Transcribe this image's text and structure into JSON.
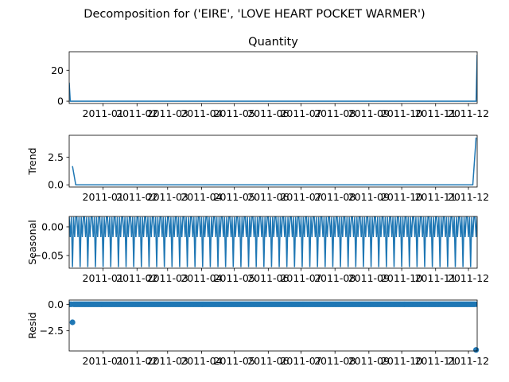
{
  "title": "Decomposition for ('EIRE', 'LOVE HEART POCKET WARMER')",
  "colors": {
    "series": "#1f77b4",
    "axis": "#000000"
  },
  "chart_data": [
    {
      "type": "line",
      "panel": "observed",
      "title": "Quantity",
      "ylabel": "",
      "x_range": [
        "2010-12-01",
        "2011-12-09"
      ],
      "ylim": [
        -1.5,
        32
      ],
      "yticks": [
        0,
        20
      ],
      "ytick_labels": [
        "0",
        "20"
      ],
      "xticks": [
        "2011-01-01",
        "2011-02-01",
        "2011-03-01",
        "2011-04-01",
        "2011-05-01",
        "2011-06-01",
        "2011-07-01",
        "2011-08-01",
        "2011-09-01",
        "2011-10-01",
        "2011-11-01",
        "2011-12-01"
      ],
      "xtick_labels": [
        "2011-01",
        "2011-02",
        "2011-03",
        "2011-04",
        "2011-05",
        "2011-06",
        "2011-07",
        "2011-08",
        "2011-09",
        "2011-10",
        "2011-11",
        "2011-12"
      ],
      "series": [
        {
          "x": [
            "2010-12-01",
            "2010-12-02",
            "2011-12-08",
            "2011-12-09"
          ],
          "y": [
            12,
            0,
            0,
            30
          ]
        }
      ]
    },
    {
      "type": "line",
      "panel": "trend",
      "ylabel": "Trend",
      "x_range": [
        "2010-12-01",
        "2011-12-09"
      ],
      "ylim": [
        -0.2,
        4.5
      ],
      "yticks": [
        0,
        2.5
      ],
      "ytick_labels": [
        "0.0",
        "2.5"
      ],
      "xticks": [
        "2011-01-01",
        "2011-02-01",
        "2011-03-01",
        "2011-04-01",
        "2011-05-01",
        "2011-06-01",
        "2011-07-01",
        "2011-08-01",
        "2011-09-01",
        "2011-10-01",
        "2011-11-01",
        "2011-12-01"
      ],
      "xtick_labels": [
        "2011-01",
        "2011-02",
        "2011-03",
        "2011-04",
        "2011-05",
        "2011-06",
        "2011-07",
        "2011-08",
        "2011-09",
        "2011-10",
        "2011-11",
        "2011-12"
      ],
      "series": [
        {
          "x": [
            "2010-12-04",
            "2010-12-07",
            "2011-12-05",
            "2011-12-08"
          ],
          "y": [
            1.7,
            0,
            0,
            4.3
          ]
        }
      ]
    },
    {
      "type": "line",
      "panel": "seasonal",
      "ylabel": "Seasonal",
      "x_range": [
        "2010-12-01",
        "2011-12-09"
      ],
      "ylim": [
        -0.072,
        0.018
      ],
      "yticks": [
        0.0,
        -0.05
      ],
      "ytick_labels": [
        "0.00",
        "−0.05"
      ],
      "xticks": [
        "2011-01-01",
        "2011-02-01",
        "2011-03-01",
        "2011-04-01",
        "2011-05-01",
        "2011-06-01",
        "2011-07-01",
        "2011-08-01",
        "2011-09-01",
        "2011-10-01",
        "2011-11-01",
        "2011-12-01"
      ],
      "xtick_labels": [
        "2011-01",
        "2011-02",
        "2011-03",
        "2011-04",
        "2011-05",
        "2011-06",
        "2011-07",
        "2011-08",
        "2011-09",
        "2011-10",
        "2011-11",
        "2011-12"
      ],
      "period_days": 7,
      "weekly_pattern": [
        0.017,
        -0.018,
        0.017,
        -0.07,
        0.017,
        -0.018,
        0.017
      ]
    },
    {
      "type": "scatter",
      "panel": "resid",
      "ylabel": "Resid",
      "x_range": [
        "2010-12-01",
        "2011-12-09"
      ],
      "ylim": [
        -4.4,
        0.4
      ],
      "yticks": [
        0.0,
        -2.5
      ],
      "ytick_labels": [
        "0.0",
        "−2.5"
      ],
      "xticks": [
        "2011-01-01",
        "2011-02-01",
        "2011-03-01",
        "2011-04-01",
        "2011-05-01",
        "2011-06-01",
        "2011-07-01",
        "2011-08-01",
        "2011-09-01",
        "2011-10-01",
        "2011-11-01",
        "2011-12-01"
      ],
      "xtick_labels": [
        "2011-01",
        "2011-02",
        "2011-03",
        "2011-04",
        "2011-05",
        "2011-06",
        "2011-07",
        "2011-08",
        "2011-09",
        "2011-10",
        "2011-11",
        "2011-12"
      ],
      "baseline_value": 0.0,
      "outliers": [
        {
          "x": "2010-12-04",
          "y": -1.7
        },
        {
          "x": "2011-12-08",
          "y": -4.3
        }
      ]
    }
  ]
}
